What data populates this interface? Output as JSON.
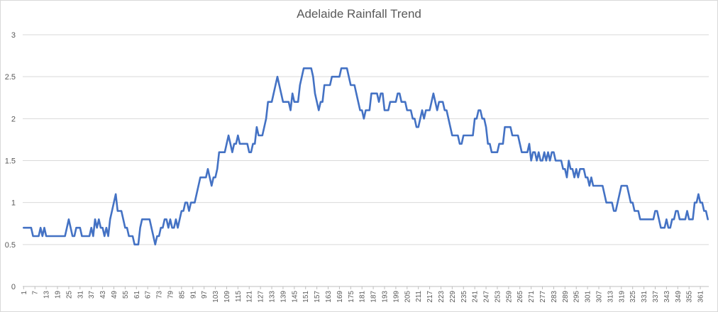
{
  "chart_data": {
    "type": "line",
    "title": "Adelaide Rainfall Trend",
    "xlabel": "",
    "ylabel": "",
    "ylim": [
      0,
      3
    ],
    "yticks": [
      0,
      0.5,
      1,
      1.5,
      2,
      2.5,
      3
    ],
    "xticks": [
      1,
      7,
      13,
      19,
      25,
      31,
      37,
      43,
      49,
      55,
      61,
      67,
      73,
      79,
      85,
      91,
      97,
      103,
      109,
      115,
      121,
      127,
      133,
      139,
      145,
      151,
      157,
      163,
      169,
      175,
      181,
      187,
      193,
      199,
      205,
      211,
      217,
      223,
      229,
      235,
      241,
      247,
      253,
      259,
      265,
      271,
      277,
      283,
      289,
      295,
      301,
      307,
      313,
      319,
      325,
      331,
      337,
      343,
      349,
      355,
      361
    ],
    "grid": true,
    "legend": "none",
    "line_color": "#4472c4",
    "x": [
      1,
      2,
      3,
      4,
      5,
      6,
      7,
      8,
      9,
      10,
      11,
      12,
      13,
      14,
      15,
      16,
      17,
      18,
      19,
      20,
      21,
      22,
      23,
      24,
      25,
      26,
      27,
      28,
      29,
      30,
      31,
      32,
      33,
      34,
      35,
      36,
      37,
      38,
      39,
      40,
      41,
      42,
      43,
      44,
      45,
      46,
      47,
      48,
      49,
      50,
      51,
      52,
      53,
      54,
      55,
      56,
      57,
      58,
      59,
      60,
      61,
      62,
      63,
      64,
      65,
      66,
      67,
      68,
      69,
      70,
      71,
      72,
      73,
      74,
      75,
      76,
      77,
      78,
      79,
      80,
      81,
      82,
      83,
      84,
      85,
      86,
      87,
      88,
      89,
      90,
      91,
      92,
      93,
      94,
      95,
      96,
      97,
      98,
      99,
      100,
      101,
      102,
      103,
      104,
      105,
      106,
      107,
      108,
      109,
      110,
      111,
      112,
      113,
      114,
      115,
      116,
      117,
      118,
      119,
      120,
      121,
      122,
      123,
      124,
      125,
      126,
      127,
      128,
      129,
      130,
      131,
      132,
      133,
      134,
      135,
      136,
      137,
      138,
      139,
      140,
      141,
      142,
      143,
      144,
      145,
      146,
      147,
      148,
      149,
      150,
      151,
      152,
      153,
      154,
      155,
      156,
      157,
      158,
      159,
      160,
      161,
      162,
      163,
      164,
      165,
      166,
      167,
      168,
      169,
      170,
      171,
      172,
      173,
      174,
      175,
      176,
      177,
      178,
      179,
      180,
      181,
      182,
      183,
      184,
      185,
      186,
      187,
      188,
      189,
      190,
      191,
      192,
      193,
      194,
      195,
      196,
      197,
      198,
      199,
      200,
      201,
      202,
      203,
      204,
      205,
      206,
      207,
      208,
      209,
      210,
      211,
      212,
      213,
      214,
      215,
      216,
      217,
      218,
      219,
      220,
      221,
      222,
      223,
      224,
      225,
      226,
      227,
      228,
      229,
      230,
      231,
      232,
      233,
      234,
      235,
      236,
      237,
      238,
      239,
      240,
      241,
      242,
      243,
      244,
      245,
      246,
      247,
      248,
      249,
      250,
      251,
      252,
      253,
      254,
      255,
      256,
      257,
      258,
      259,
      260,
      261,
      262,
      263,
      264,
      265,
      266,
      267,
      268,
      269,
      270,
      271,
      272,
      273,
      274,
      275,
      276,
      277,
      278,
      279,
      280,
      281,
      282,
      283,
      284,
      285,
      286,
      287,
      288,
      289,
      290,
      291,
      292,
      293,
      294,
      295,
      296,
      297,
      298,
      299,
      300,
      301,
      302,
      303,
      304,
      305,
      306,
      307,
      308,
      309,
      310,
      311,
      312,
      313,
      314,
      315,
      316,
      317,
      318,
      319,
      320,
      321,
      322,
      323,
      324,
      325,
      326,
      327,
      328,
      329,
      330,
      331,
      332,
      333,
      334,
      335,
      336,
      337,
      338,
      339,
      340,
      341,
      342,
      343,
      344,
      345,
      346,
      347,
      348,
      349,
      350,
      351,
      352,
      353,
      354,
      355,
      356,
      357,
      358,
      359,
      360,
      361,
      362,
      363,
      364,
      365
    ],
    "series": [
      {
        "values": [
          0.7,
          0.7,
          0.7,
          0.7,
          0.7,
          0.6,
          0.6,
          0.6,
          0.6,
          0.7,
          0.6,
          0.7,
          0.6,
          0.6,
          0.6,
          0.6,
          0.6,
          0.6,
          0.6,
          0.6,
          0.6,
          0.6,
          0.6,
          0.7,
          0.8,
          0.7,
          0.6,
          0.6,
          0.7,
          0.7,
          0.7,
          0.6,
          0.6,
          0.6,
          0.6,
          0.6,
          0.7,
          0.6,
          0.8,
          0.7,
          0.8,
          0.7,
          0.7,
          0.6,
          0.7,
          0.6,
          0.8,
          0.9,
          1.0,
          1.1,
          0.9,
          0.9,
          0.9,
          0.8,
          0.7,
          0.7,
          0.6,
          0.6,
          0.6,
          0.5,
          0.5,
          0.5,
          0.7,
          0.8,
          0.8,
          0.8,
          0.8,
          0.8,
          0.7,
          0.6,
          0.5,
          0.6,
          0.6,
          0.7,
          0.7,
          0.8,
          0.8,
          0.7,
          0.8,
          0.7,
          0.7,
          0.8,
          0.7,
          0.8,
          0.9,
          0.9,
          1.0,
          1.0,
          0.9,
          1.0,
          1.0,
          1.0,
          1.1,
          1.2,
          1.3,
          1.3,
          1.3,
          1.3,
          1.4,
          1.3,
          1.2,
          1.3,
          1.3,
          1.4,
          1.6,
          1.6,
          1.6,
          1.6,
          1.7,
          1.8,
          1.7,
          1.6,
          1.7,
          1.7,
          1.8,
          1.7,
          1.7,
          1.7,
          1.7,
          1.7,
          1.6,
          1.6,
          1.7,
          1.7,
          1.9,
          1.8,
          1.8,
          1.8,
          1.9,
          2.0,
          2.2,
          2.2,
          2.2,
          2.3,
          2.4,
          2.5,
          2.4,
          2.3,
          2.2,
          2.2,
          2.2,
          2.2,
          2.1,
          2.3,
          2.2,
          2.2,
          2.2,
          2.4,
          2.5,
          2.6,
          2.6,
          2.6,
          2.6,
          2.6,
          2.5,
          2.3,
          2.2,
          2.1,
          2.2,
          2.2,
          2.4,
          2.4,
          2.4,
          2.4,
          2.5,
          2.5,
          2.5,
          2.5,
          2.5,
          2.6,
          2.6,
          2.6,
          2.6,
          2.5,
          2.4,
          2.4,
          2.4,
          2.3,
          2.2,
          2.1,
          2.1,
          2.0,
          2.1,
          2.1,
          2.1,
          2.3,
          2.3,
          2.3,
          2.3,
          2.2,
          2.3,
          2.3,
          2.1,
          2.1,
          2.1,
          2.2,
          2.2,
          2.2,
          2.2,
          2.3,
          2.3,
          2.2,
          2.2,
          2.2,
          2.1,
          2.1,
          2.1,
          2.0,
          2.0,
          1.9,
          1.9,
          2.0,
          2.1,
          2.0,
          2.1,
          2.1,
          2.1,
          2.2,
          2.3,
          2.2,
          2.1,
          2.2,
          2.2,
          2.2,
          2.1,
          2.1,
          2.0,
          1.9,
          1.8,
          1.8,
          1.8,
          1.8,
          1.7,
          1.7,
          1.8,
          1.8,
          1.8,
          1.8,
          1.8,
          1.8,
          2.0,
          2.0,
          2.1,
          2.1,
          2.0,
          2.0,
          1.9,
          1.7,
          1.7,
          1.6,
          1.6,
          1.6,
          1.6,
          1.7,
          1.7,
          1.7,
          1.9,
          1.9,
          1.9,
          1.9,
          1.8,
          1.8,
          1.8,
          1.8,
          1.7,
          1.6,
          1.6,
          1.6,
          1.6,
          1.7,
          1.5,
          1.6,
          1.6,
          1.5,
          1.6,
          1.5,
          1.5,
          1.6,
          1.5,
          1.6,
          1.5,
          1.6,
          1.6,
          1.5,
          1.5,
          1.5,
          1.5,
          1.4,
          1.4,
          1.3,
          1.5,
          1.4,
          1.4,
          1.3,
          1.4,
          1.3,
          1.4,
          1.4,
          1.4,
          1.3,
          1.3,
          1.2,
          1.3,
          1.2,
          1.2,
          1.2,
          1.2,
          1.2,
          1.2,
          1.1,
          1.0,
          1.0,
          1.0,
          1.0,
          0.9,
          0.9,
          1.0,
          1.1,
          1.2,
          1.2,
          1.2,
          1.2,
          1.1,
          1.0,
          1.0,
          0.9,
          0.9,
          0.9,
          0.8,
          0.8,
          0.8,
          0.8,
          0.8,
          0.8,
          0.8,
          0.8,
          0.9,
          0.9,
          0.8,
          0.7,
          0.7,
          0.7,
          0.8,
          0.7,
          0.7,
          0.8,
          0.8,
          0.9,
          0.9,
          0.8,
          0.8,
          0.8,
          0.8,
          0.9,
          0.8,
          0.8,
          0.8,
          1.0,
          1.0,
          1.1,
          1.0,
          1.0,
          0.9,
          0.9,
          0.8
        ]
      }
    ]
  }
}
